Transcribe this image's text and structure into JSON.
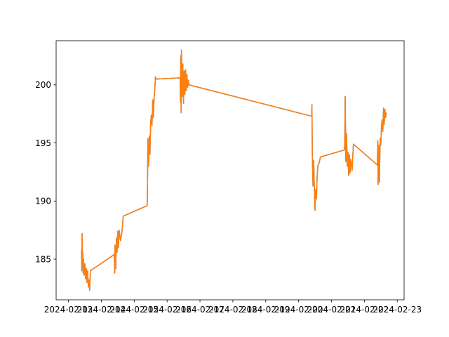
{
  "chart_data": {
    "type": "line",
    "title": "",
    "xlabel": "",
    "ylabel": "",
    "grid": false,
    "legend": "none",
    "xlim": [
      "2024-02-12T15:00",
      "2024-02-23T05:00"
    ],
    "ylim": [
      181.5,
      203.8
    ],
    "x_tick_labels": [
      "2024-02-13",
      "2024-02-14",
      "2024-02-15",
      "2024-02-16",
      "2024-02-17",
      "2024-02-18",
      "2024-02-19",
      "2024-02-20",
      "2024-02-21",
      "2024-02-22",
      "2024-02-23"
    ],
    "x_ticks": [
      "2024-02-13T00:00",
      "2024-02-14T00:00",
      "2024-02-15T00:00",
      "2024-02-16T00:00",
      "2024-02-17T00:00",
      "2024-02-18T00:00",
      "2024-02-19T00:00",
      "2024-02-20T00:00",
      "2024-02-21T00:00",
      "2024-02-22T00:00",
      "2024-02-23T00:00"
    ],
    "y_ticks": [
      185,
      190,
      195,
      200
    ],
    "y_tick_labels": [
      "185",
      "190",
      "195",
      "200"
    ],
    "series": [
      {
        "color": "#1f77b4",
        "x": [
          "2024-02-13T09:30",
          "2024-02-13T09:45",
          "2024-02-13T10:00",
          "2024-02-13T10:15",
          "2024-02-13T10:30",
          "2024-02-13T10:45",
          "2024-02-13T11:00",
          "2024-02-13T11:30",
          "2024-02-13T12:00",
          "2024-02-13T12:30",
          "2024-02-13T13:00",
          "2024-02-13T13:30",
          "2024-02-13T14:00",
          "2024-02-13T14:30",
          "2024-02-13T15:00",
          "2024-02-13T15:30",
          "2024-02-13T16:00",
          "2024-02-14T09:30",
          "2024-02-14T09:45",
          "2024-02-14T10:00",
          "2024-02-14T10:30",
          "2024-02-14T11:00",
          "2024-02-14T11:30",
          "2024-02-14T12:00",
          "2024-02-14T12:30",
          "2024-02-14T13:00",
          "2024-02-14T14:00",
          "2024-02-14T15:00",
          "2024-02-14T16:00",
          "2024-02-15T09:30",
          "2024-02-15T09:45",
          "2024-02-15T10:00",
          "2024-02-15T10:30",
          "2024-02-15T11:00",
          "2024-02-15T11:30",
          "2024-02-15T12:00",
          "2024-02-15T12:30",
          "2024-02-15T13:00",
          "2024-02-15T13:30",
          "2024-02-15T14:00",
          "2024-02-15T14:30",
          "2024-02-15T15:00",
          "2024-02-15T15:30",
          "2024-02-15T16:00",
          "2024-02-16T09:30",
          "2024-02-16T09:45",
          "2024-02-16T10:00",
          "2024-02-16T10:15",
          "2024-02-16T10:30",
          "2024-02-16T11:00",
          "2024-02-16T11:30",
          "2024-02-16T12:00",
          "2024-02-16T12:30",
          "2024-02-16T13:00",
          "2024-02-16T13:30",
          "2024-02-16T14:00",
          "2024-02-16T14:30",
          "2024-02-16T15:00",
          "2024-02-16T15:30",
          "2024-02-16T16:00",
          "2024-02-20T09:30",
          "2024-02-20T09:45",
          "2024-02-20T10:00",
          "2024-02-20T10:30",
          "2024-02-20T11:00",
          "2024-02-20T11:30",
          "2024-02-20T12:00",
          "2024-02-20T12:30",
          "2024-02-20T13:00",
          "2024-02-20T13:30",
          "2024-02-20T14:00",
          "2024-02-20T15:00",
          "2024-02-20T16:00",
          "2024-02-21T09:30",
          "2024-02-21T09:45",
          "2024-02-21T10:00",
          "2024-02-21T10:30",
          "2024-02-21T11:00",
          "2024-02-21T11:30",
          "2024-02-21T12:00",
          "2024-02-21T12:30",
          "2024-02-21T13:00",
          "2024-02-21T13:30",
          "2024-02-21T14:00",
          "2024-02-21T15:00",
          "2024-02-21T16:00",
          "2024-02-22T09:30",
          "2024-02-22T09:45",
          "2024-02-22T10:00",
          "2024-02-22T10:30",
          "2024-02-22T11:00",
          "2024-02-22T11:30",
          "2024-02-22T12:00",
          "2024-02-22T12:30",
          "2024-02-22T13:00",
          "2024-02-22T13:30",
          "2024-02-22T14:00",
          "2024-02-22T14:30",
          "2024-02-22T15:00",
          "2024-02-22T15:30",
          "2024-02-22T16:00"
        ],
        "values": [
          185.8,
          184.0,
          187.2,
          184.5,
          185.5,
          183.8,
          185.0,
          183.6,
          184.6,
          183.3,
          184.2,
          183.0,
          184.0,
          182.6,
          183.2,
          182.3,
          184.0,
          185.4,
          183.8,
          186.2,
          184.2,
          186.8,
          185.6,
          187.4,
          186.0,
          187.5,
          186.6,
          187.3,
          188.7,
          189.6,
          192.0,
          195.4,
          193.0,
          195.6,
          194.0,
          196.8,
          197.4,
          196.5,
          198.7,
          197.2,
          198.9,
          199.6,
          200.7,
          200.5,
          200.6,
          198.5,
          202.5,
          197.6,
          203.0,
          199.0,
          201.8,
          198.4,
          201.2,
          199.2,
          201.3,
          199.5,
          200.9,
          199.8,
          200.4,
          200.0,
          197.3,
          198.3,
          194.0,
          191.3,
          193.5,
          191.0,
          189.2,
          191.0,
          190.2,
          192.0,
          193.0,
          193.3,
          193.8,
          194.4,
          195.8,
          199.0,
          193.4,
          195.8,
          193.0,
          194.2,
          192.2,
          194.0,
          192.4,
          193.6,
          192.6,
          194.9,
          193.1,
          195.2,
          191.4,
          194.8,
          191.6,
          195.4,
          194.8,
          196.5,
          197.0,
          196.0,
          198.0,
          196.6,
          197.9,
          197.2,
          197.6
        ]
      },
      {
        "color": "#ff7f0e",
        "x": [
          "2024-02-13T09:30",
          "2024-02-13T09:45",
          "2024-02-13T10:00",
          "2024-02-13T10:15",
          "2024-02-13T10:30",
          "2024-02-13T10:45",
          "2024-02-13T11:00",
          "2024-02-13T11:30",
          "2024-02-13T12:00",
          "2024-02-13T12:30",
          "2024-02-13T13:00",
          "2024-02-13T13:30",
          "2024-02-13T14:00",
          "2024-02-13T14:30",
          "2024-02-13T15:00",
          "2024-02-13T15:30",
          "2024-02-13T16:00",
          "2024-02-14T09:30",
          "2024-02-14T09:45",
          "2024-02-14T10:00",
          "2024-02-14T10:30",
          "2024-02-14T11:00",
          "2024-02-14T11:30",
          "2024-02-14T12:00",
          "2024-02-14T12:30",
          "2024-02-14T13:00",
          "2024-02-14T14:00",
          "2024-02-14T15:00",
          "2024-02-14T16:00",
          "2024-02-15T09:30",
          "2024-02-15T09:45",
          "2024-02-15T10:00",
          "2024-02-15T10:30",
          "2024-02-15T11:00",
          "2024-02-15T11:30",
          "2024-02-15T12:00",
          "2024-02-15T12:30",
          "2024-02-15T13:00",
          "2024-02-15T13:30",
          "2024-02-15T14:00",
          "2024-02-15T14:30",
          "2024-02-15T15:00",
          "2024-02-15T15:30",
          "2024-02-15T16:00",
          "2024-02-16T09:30",
          "2024-02-16T09:45",
          "2024-02-16T10:00",
          "2024-02-16T10:15",
          "2024-02-16T10:30",
          "2024-02-16T11:00",
          "2024-02-16T11:30",
          "2024-02-16T12:00",
          "2024-02-16T12:30",
          "2024-02-16T13:00",
          "2024-02-16T13:30",
          "2024-02-16T14:00",
          "2024-02-16T14:30",
          "2024-02-16T15:00",
          "2024-02-16T15:30",
          "2024-02-16T16:00",
          "2024-02-20T09:30",
          "2024-02-20T09:45",
          "2024-02-20T10:00",
          "2024-02-20T10:30",
          "2024-02-20T11:00",
          "2024-02-20T11:30",
          "2024-02-20T12:00",
          "2024-02-20T12:30",
          "2024-02-20T13:00",
          "2024-02-20T13:30",
          "2024-02-20T14:00",
          "2024-02-20T15:00",
          "2024-02-20T16:00",
          "2024-02-21T09:30",
          "2024-02-21T09:45",
          "2024-02-21T10:00",
          "2024-02-21T10:30",
          "2024-02-21T11:00",
          "2024-02-21T11:30",
          "2024-02-21T12:00",
          "2024-02-21T12:30",
          "2024-02-21T13:00",
          "2024-02-21T13:30",
          "2024-02-21T14:00",
          "2024-02-21T15:00",
          "2024-02-21T16:00",
          "2024-02-22T09:30",
          "2024-02-22T09:45",
          "2024-02-22T10:00",
          "2024-02-22T10:30",
          "2024-02-22T11:00",
          "2024-02-22T11:30",
          "2024-02-22T12:00",
          "2024-02-22T12:30",
          "2024-02-22T13:00",
          "2024-02-22T13:30",
          "2024-02-22T14:00",
          "2024-02-22T14:30",
          "2024-02-22T15:00",
          "2024-02-22T15:30",
          "2024-02-22T16:00"
        ],
        "values": [
          185.8,
          184.0,
          187.2,
          184.5,
          185.5,
          183.8,
          185.0,
          183.6,
          184.6,
          183.3,
          184.2,
          183.0,
          184.0,
          182.6,
          183.2,
          182.3,
          184.0,
          185.4,
          183.8,
          186.2,
          184.2,
          186.8,
          185.6,
          187.4,
          186.0,
          187.5,
          186.6,
          187.3,
          188.7,
          189.6,
          192.0,
          195.4,
          193.0,
          195.6,
          194.0,
          196.8,
          197.4,
          196.5,
          198.7,
          197.2,
          198.9,
          199.6,
          200.7,
          200.5,
          200.6,
          198.5,
          202.5,
          197.6,
          203.0,
          199.0,
          201.8,
          198.4,
          201.2,
          199.2,
          201.3,
          199.5,
          200.9,
          199.8,
          200.4,
          200.0,
          197.3,
          198.3,
          194.0,
          191.3,
          193.5,
          191.0,
          189.2,
          191.0,
          190.2,
          192.0,
          193.0,
          193.3,
          193.8,
          194.4,
          195.8,
          199.0,
          193.4,
          195.8,
          193.0,
          194.2,
          192.2,
          194.0,
          192.4,
          193.6,
          192.6,
          194.9,
          193.1,
          195.2,
          191.4,
          194.8,
          191.6,
          195.4,
          194.8,
          196.5,
          197.0,
          196.0,
          198.0,
          196.6,
          197.9,
          197.2,
          197.6
        ]
      }
    ]
  }
}
